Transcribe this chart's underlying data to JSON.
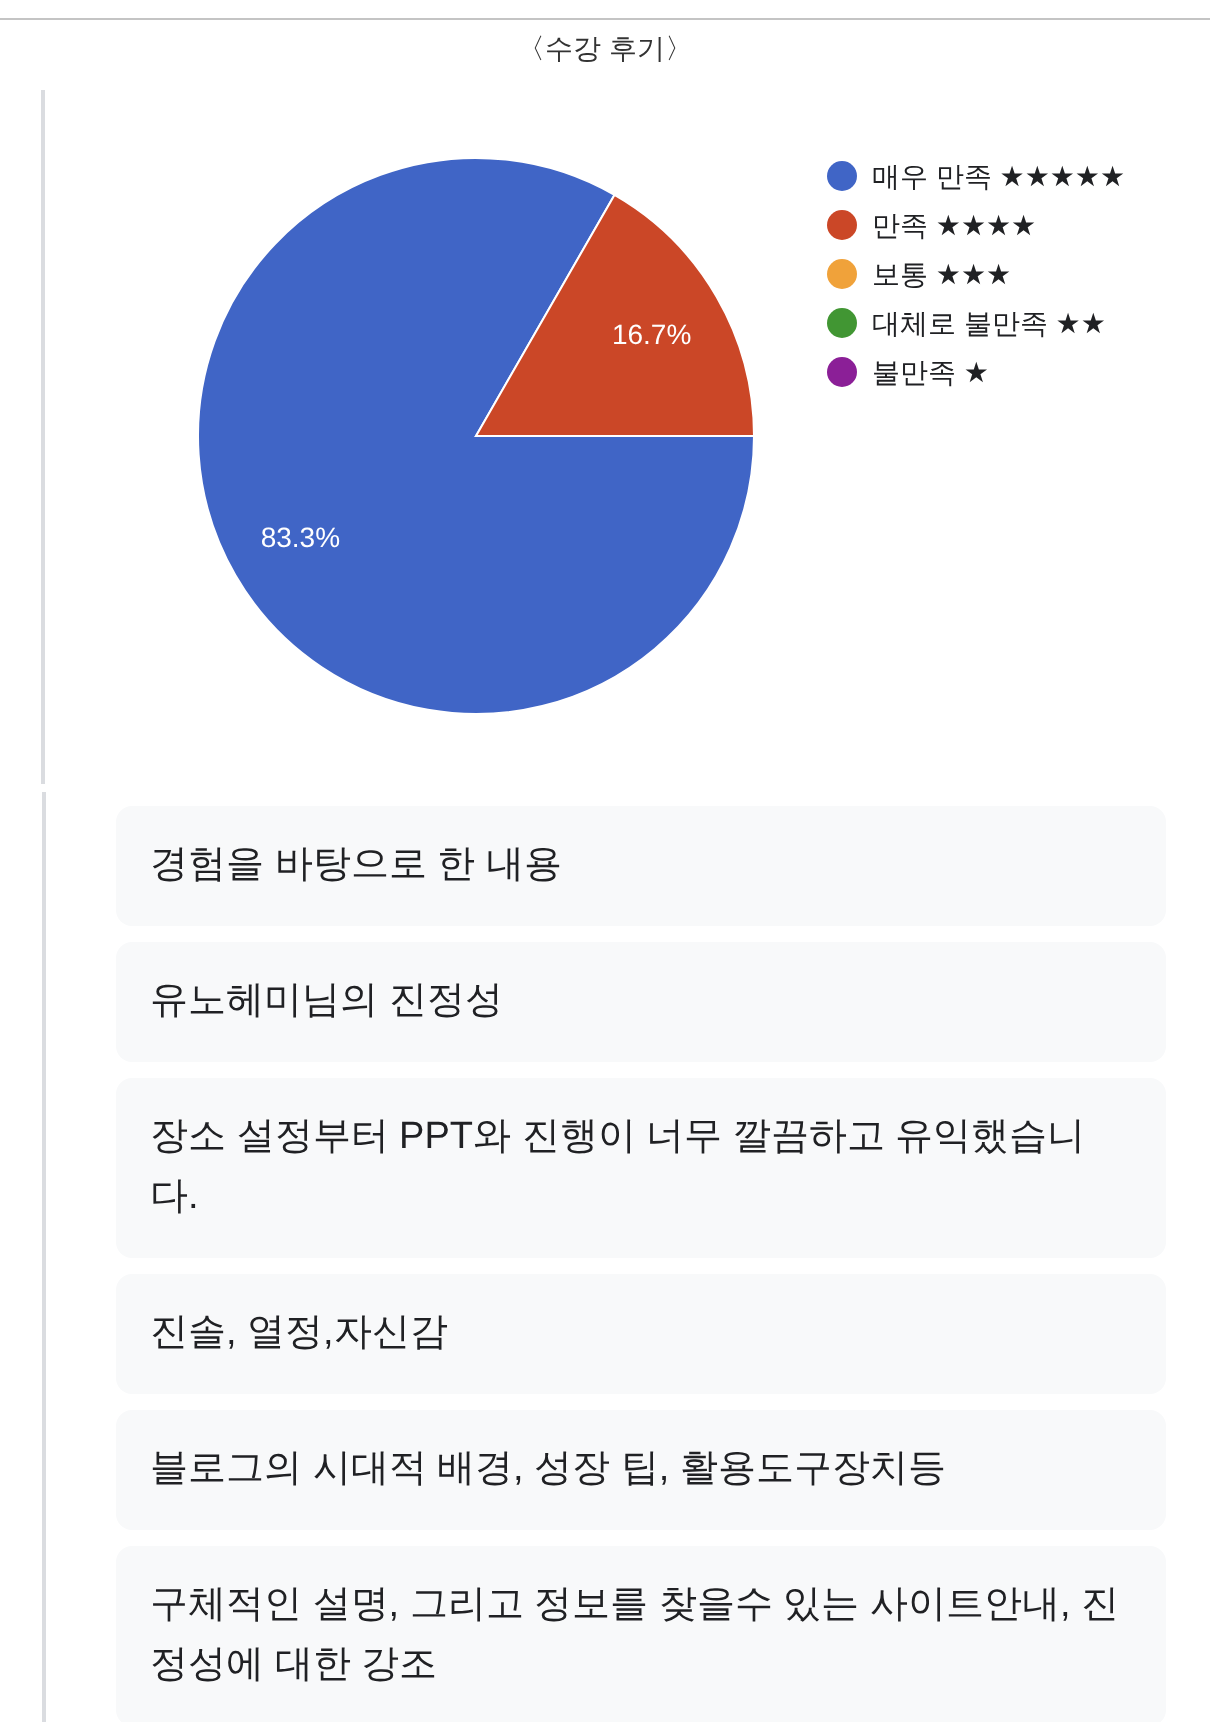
{
  "chart_data": [
    {
      "type": "pie",
      "title": "〈수강 후기〉",
      "categories": [
        "매우 만족 ★★★★★",
        "만족 ★★★★",
        "보통 ★★★",
        "대체로 불만족 ★★",
        "불만족 ★"
      ],
      "values": [
        83.3,
        16.7,
        0,
        0,
        0
      ],
      "colors": [
        "#4065c6",
        "#cb4727",
        "#f0a23a",
        "#419633",
        "#8b1f97"
      ],
      "value_labels": [
        "83.3%",
        "16.7%",
        null,
        null,
        null
      ],
      "legend": "right"
    },
    {
      "type": "other",
      "annotations": [
        "경험을 바탕으로 한 내용",
        "유노헤미님의 진정성",
        "장소 설정부터 PPT와 진행이 너무 깔끔하고 유익했습니다.",
        "진솔, 열정,자신감",
        "블로그의 시대적 배경, 성장 팁, 활용도구장치등",
        "구체적인 설명, 그리고 정보를 찾을수 있는 사이트안내, 진정성에 대한 강조"
      ]
    }
  ]
}
